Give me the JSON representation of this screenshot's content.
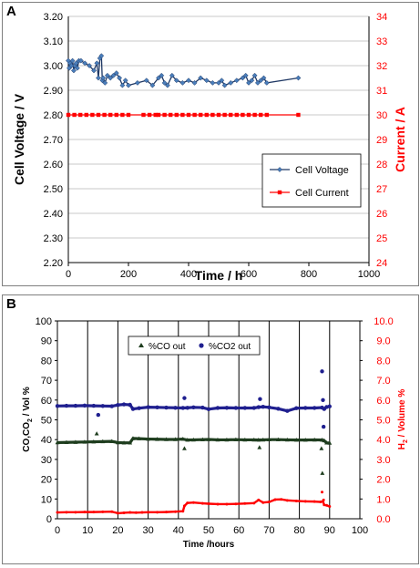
{
  "colors": {
    "voltage": "#1f3864",
    "voltage_marker": "#4a7ebb",
    "current": "#ff0000",
    "grid": "#c8c8c8",
    "vline": "#000000",
    "co2": "#1f1f8f",
    "co": "#1e3d1e",
    "h2": "#ff0000"
  },
  "chart_data": [
    {
      "panel": "A",
      "type": "line",
      "xlabel": "Time / h",
      "ylabel": "Cell Voltage / V",
      "y2label": "Current / A",
      "xlim": [
        0,
        1000
      ],
      "xticks": [
        "0",
        "200",
        "400",
        "600",
        "800",
        "1000"
      ],
      "ylim": [
        2.2,
        3.2
      ],
      "yticks": [
        "2.20",
        "2.30",
        "2.40",
        "2.50",
        "2.60",
        "2.70",
        "2.80",
        "2.90",
        "3.00",
        "3.10",
        "3.20"
      ],
      "y2lim": [
        24,
        34
      ],
      "y2ticks": [
        "24",
        "25",
        "26",
        "27",
        "28",
        "29",
        "30",
        "31",
        "32",
        "33",
        "34"
      ],
      "grid": true,
      "legend_position": "bottom-right",
      "series": [
        {
          "name": "Cell Voltage",
          "axis": "left",
          "x": [
            0,
            3,
            6,
            10,
            14,
            18,
            22,
            26,
            30,
            35,
            42,
            55,
            70,
            85,
            95,
            100,
            105,
            110,
            113,
            116,
            122,
            130,
            140,
            150,
            160,
            170,
            180,
            190,
            200,
            230,
            260,
            280,
            300,
            310,
            320,
            330,
            345,
            360,
            380,
            400,
            420,
            440,
            460,
            480,
            500,
            510,
            520,
            540,
            560,
            580,
            590,
            600,
            610,
            620,
            630,
            640,
            650,
            660,
            765
          ],
          "y": [
            3.02,
            2.99,
            3.01,
            3.0,
            3.02,
            2.98,
            3.0,
            3.01,
            2.99,
            3.02,
            3.02,
            3.01,
            3.0,
            2.98,
            3.01,
            2.95,
            3.03,
            3.04,
            2.94,
            2.95,
            2.93,
            2.96,
            2.95,
            2.96,
            2.97,
            2.95,
            2.92,
            2.94,
            2.92,
            2.93,
            2.94,
            2.92,
            2.95,
            2.96,
            2.93,
            2.92,
            2.96,
            2.94,
            2.93,
            2.94,
            2.93,
            2.95,
            2.94,
            2.93,
            2.93,
            2.94,
            2.92,
            2.93,
            2.94,
            2.95,
            2.96,
            2.93,
            2.94,
            2.96,
            2.93,
            2.94,
            2.95,
            2.93,
            2.95
          ]
        },
        {
          "name": "Cell Current",
          "axis": "right",
          "x": [
            0,
            20,
            40,
            60,
            80,
            100,
            120,
            140,
            160,
            180,
            200,
            250,
            270,
            290,
            300,
            320,
            340,
            360,
            380,
            400,
            420,
            440,
            460,
            480,
            500,
            520,
            540,
            560,
            580,
            600,
            620,
            640,
            660,
            765
          ],
          "y": [
            30,
            30,
            30,
            30,
            30,
            30,
            30,
            30,
            30,
            30,
            30,
            30,
            30,
            30,
            30,
            30,
            30,
            30,
            30,
            30,
            30,
            30,
            30,
            30,
            30,
            30,
            30,
            30,
            30,
            30,
            30,
            30,
            30,
            30
          ]
        }
      ]
    },
    {
      "panel": "B",
      "type": "scatter",
      "xlabel": "Time /hours",
      "ylabel_main": "CO,CO",
      "ylabel_sub": "2",
      "ylabel_tail": " / Vol %",
      "y2label_main": "H",
      "y2label_sub": "2",
      "y2label_tail": " / Volume %",
      "xlim": [
        0,
        100
      ],
      "xticks": [
        "0",
        "10",
        "20",
        "30",
        "40",
        "50",
        "60",
        "70",
        "80",
        "90",
        "100"
      ],
      "ylim": [
        0,
        100
      ],
      "yticks": [
        "0",
        "10",
        "20",
        "30",
        "40",
        "50",
        "60",
        "70",
        "80",
        "90",
        "100"
      ],
      "y2lim": [
        0,
        10
      ],
      "y2ticks": [
        "0.0",
        "1.0",
        "2.0",
        "3.0",
        "4.0",
        "5.0",
        "6.0",
        "7.0",
        "8.0",
        "9.0",
        "10.0"
      ],
      "grid": "vertical lines at every 10 hours",
      "legend_position": "top-center",
      "series": [
        {
          "name": "%CO out",
          "axis": "left",
          "x": [
            0,
            3,
            6,
            9,
            12,
            15,
            18,
            20,
            22,
            24,
            25,
            27,
            30,
            33,
            36,
            39,
            41.5,
            43,
            45,
            48,
            50,
            53,
            56,
            59,
            62,
            65,
            66.5,
            68,
            70,
            73,
            76,
            79,
            82,
            85,
            87.5,
            88.2,
            89,
            90,
            13,
            42,
            66.8,
            87.3,
            87.6
          ],
          "y": [
            38.5,
            38.6,
            38.7,
            38.8,
            38.9,
            39,
            39.1,
            38.5,
            38.4,
            38.4,
            40.6,
            40.5,
            40.3,
            40.2,
            40.1,
            40.1,
            40.3,
            39.8,
            39.9,
            40,
            40.1,
            39.9,
            39.9,
            40,
            39.9,
            39.9,
            39.8,
            39.9,
            40,
            40,
            39.9,
            39.8,
            39.8,
            39.9,
            39.8,
            39.5,
            38.4,
            38.3,
            43,
            35.5,
            36,
            35.5,
            23
          ]
        },
        {
          "name": "%CO2 out",
          "axis": "left",
          "x": [
            0,
            3,
            6,
            9,
            12,
            15,
            18,
            20,
            22,
            24,
            25,
            27,
            30,
            33,
            36,
            39,
            41.5,
            43,
            45,
            48,
            50,
            53,
            56,
            59,
            62,
            65,
            66.5,
            68,
            70,
            73,
            76,
            79,
            82,
            85,
            87.5,
            88.2,
            89,
            90,
            13.5,
            42,
            67,
            87.5,
            87.8,
            88
          ],
          "y": [
            57,
            57.1,
            57.1,
            57.2,
            57.1,
            57,
            56.9,
            57.5,
            57.8,
            57.6,
            55.5,
            55.9,
            56.4,
            56.3,
            56.2,
            56.1,
            56,
            56.1,
            56.3,
            56.2,
            55.4,
            56,
            56.1,
            56,
            56,
            56,
            56.4,
            56.6,
            56.3,
            55.6,
            54.5,
            55.9,
            56,
            56,
            56.2,
            55.5,
            56.5,
            56.8,
            52.5,
            61,
            60.5,
            74.5,
            60,
            46.5
          ]
        },
        {
          "name": "H2",
          "axis": "right",
          "x": [
            0,
            3,
            6,
            9,
            12,
            15,
            18,
            20,
            22,
            24,
            26,
            28,
            30,
            33,
            36,
            39,
            41.5,
            42,
            43,
            45,
            48,
            50,
            53,
            56,
            59,
            62,
            65,
            66.5,
            68,
            70,
            72,
            74,
            76,
            79,
            82,
            85,
            87,
            87.8,
            88.2,
            89,
            90,
            87.5,
            88
          ],
          "y": [
            0.32,
            0.33,
            0.33,
            0.34,
            0.34,
            0.35,
            0.36,
            0.28,
            0.3,
            0.32,
            0.31,
            0.32,
            0.33,
            0.33,
            0.34,
            0.36,
            0.38,
            0.65,
            0.8,
            0.82,
            0.78,
            0.76,
            0.74,
            0.74,
            0.75,
            0.77,
            0.79,
            0.95,
            0.82,
            0.85,
            0.97,
            0.98,
            0.93,
            0.9,
            0.88,
            0.87,
            0.85,
            0.88,
            0.7,
            0.68,
            0.62,
            1.35,
            0.95
          ]
        }
      ]
    }
  ]
}
